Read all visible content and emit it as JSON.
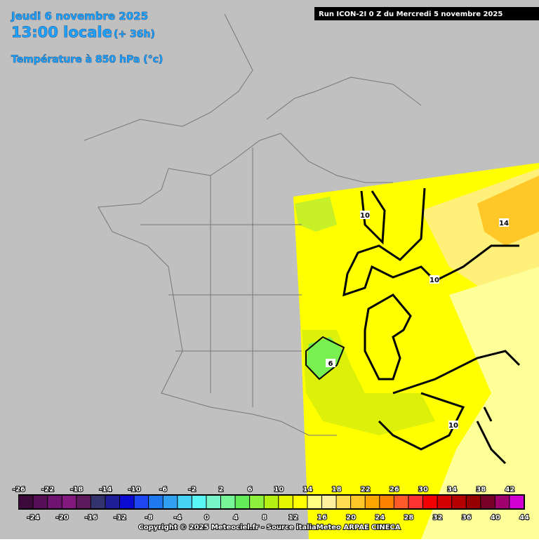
{
  "header": {
    "date": "Jeudi 6 novembre 2025",
    "time": "13:00 locale",
    "lead": "(+ 36h)",
    "field": "Température à 850 hPa (°c)"
  },
  "run": "Run ICON-2I 0 Z du Mercredi 5 novembre 2025",
  "contour_labels": [
    "10",
    "14",
    "10",
    "6",
    "10"
  ],
  "legend": {
    "ticks": [
      -26,
      -24,
      -22,
      -20,
      -18,
      -16,
      -14,
      -12,
      -10,
      -8,
      -6,
      -4,
      -2,
      0,
      2,
      4,
      6,
      8,
      10,
      12,
      14,
      16,
      18,
      20,
      22,
      24,
      26,
      28,
      30,
      32,
      34,
      36,
      38,
      40,
      42,
      44
    ],
    "colors": [
      "#3b0a3b",
      "#560f56",
      "#6e1470",
      "#82197f",
      "#5c1a5c",
      "#33336e",
      "#1e1e96",
      "#0a0ad2",
      "#1e46f0",
      "#1e78f0",
      "#32a0f0",
      "#46d2f5",
      "#5af5f5",
      "#78f5c8",
      "#78f596",
      "#64eb5a",
      "#8cf03c",
      "#b4f014",
      "#e6f500",
      "#ffff00",
      "#ffff82",
      "#fff0a0",
      "#ffdc50",
      "#ffc828",
      "#ffa500",
      "#ff8200",
      "#ff5a28",
      "#ff3232",
      "#f00000",
      "#d20000",
      "#b40000",
      "#960000",
      "#780028",
      "#a0006e",
      "#d200d2"
    ]
  },
  "copyright": "Copyright © 2025 Meteociel.fr - Source italiaMeteo ARPAE CINECA"
}
